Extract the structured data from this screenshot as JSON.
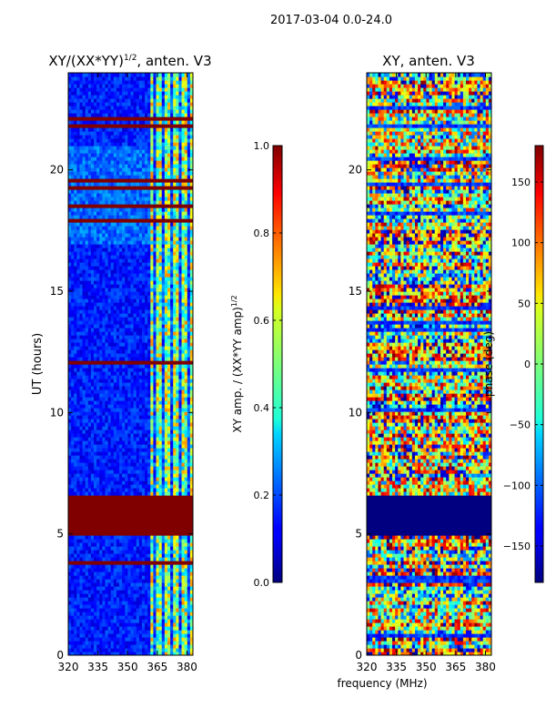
{
  "figure": {
    "suptitle": "2017-03-04 0.0-24.0",
    "xlabel_shared": "frequency (MHz)"
  },
  "chart_data": [
    {
      "type": "heatmap",
      "title": "XY/(XX*YY)",
      "title_exp": "1/2",
      "title_suffix": ", anten. V3",
      "ylabel": "UT (hours)",
      "xlim": [
        320,
        383
      ],
      "ylim": [
        0,
        24
      ],
      "xticks": [
        "320",
        "335",
        "350",
        "365",
        "380"
      ],
      "xtick_values": [
        320,
        335,
        350,
        365,
        380
      ],
      "yticks": [
        "0",
        "5",
        "10",
        "15",
        "20"
      ],
      "ytick_values": [
        0,
        5,
        10,
        15,
        20
      ],
      "flagged_ut_range": [
        5.0,
        6.6
      ],
      "colorbar": {
        "label": "XY amp. / (XX*YY amp)",
        "label_exp": "1/2",
        "range": [
          0.0,
          1.0
        ],
        "ticks": [
          "0.0",
          "0.2",
          "0.4",
          "0.6",
          "0.8",
          "1.0"
        ],
        "tick_values": [
          0.0,
          0.2,
          0.4,
          0.6,
          0.8,
          1.0
        ]
      }
    },
    {
      "type": "heatmap",
      "title": "XY, anten. V3",
      "xlim": [
        320,
        383
      ],
      "ylim": [
        0,
        24
      ],
      "xticks": [
        "320",
        "335",
        "350",
        "365",
        "380"
      ],
      "xtick_values": [
        320,
        335,
        350,
        365,
        380
      ],
      "yticks": [
        "0",
        "5",
        "10",
        "15",
        "20"
      ],
      "ytick_values": [
        0,
        5,
        10,
        15,
        20
      ],
      "flagged_ut_range": [
        5.0,
        6.6
      ],
      "colorbar": {
        "label": "phase (deg)",
        "range": [
          -180,
          180
        ],
        "ticks": [
          "150",
          "100",
          "50",
          "0",
          "−50",
          "−100",
          "−150"
        ],
        "tick_values": [
          150,
          100,
          50,
          0,
          -50,
          -100,
          -150
        ]
      }
    }
  ]
}
